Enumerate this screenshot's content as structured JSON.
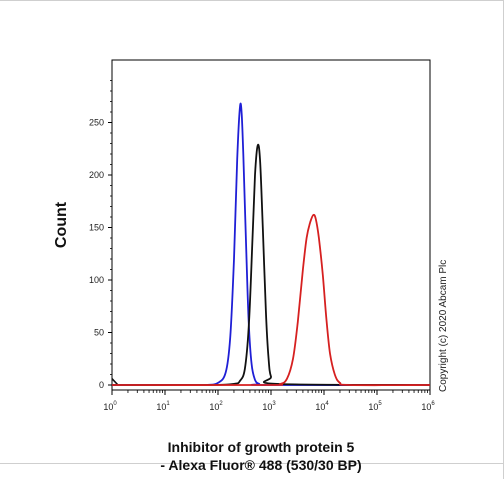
{
  "chart_data": {
    "type": "line",
    "xlabel_line1": "Inhibitor of growth protein 5",
    "xlabel_line2": "- Alexa Fluor® 488 (530/30 BP)",
    "ylabel": "Count",
    "x_scale": "log",
    "xlim": [
      1,
      1000000
    ],
    "ylim": [
      0,
      300
    ],
    "y_ticks": [
      0,
      50,
      100,
      150,
      200,
      250
    ],
    "x_ticks": [
      {
        "base": "10",
        "exp": "0",
        "value": 1
      },
      {
        "base": "10",
        "exp": "1",
        "value": 10
      },
      {
        "base": "10",
        "exp": "2",
        "value": 100
      },
      {
        "base": "10",
        "exp": "3",
        "value": 1000
      },
      {
        "base": "10",
        "exp": "4",
        "value": 10000
      },
      {
        "base": "10",
        "exp": "5",
        "value": 100000
      },
      {
        "base": "10",
        "exp": "6",
        "value": 1000000
      }
    ],
    "grid": false,
    "legend": "none",
    "series": [
      {
        "color": "#1f1fd6",
        "x": [
          1,
          20,
          60,
          100,
          140,
          170,
          200,
          230,
          260,
          280,
          300,
          340,
          380,
          430,
          500,
          600,
          800,
          1000000
        ],
        "y": [
          0,
          0,
          0,
          2,
          12,
          45,
          120,
          215,
          265,
          258,
          220,
          130,
          60,
          20,
          5,
          1,
          0,
          0
        ]
      },
      {
        "color": "#111111",
        "x": [
          1,
          60,
          200,
          260,
          320,
          380,
          440,
          500,
          560,
          620,
          700,
          800,
          900,
          1000,
          1300,
          1000000
        ],
        "y": [
          0,
          0,
          1,
          4,
          15,
          55,
          130,
          200,
          228,
          215,
          150,
          70,
          25,
          8,
          1,
          0
        ],
        "start_spike": 6
      },
      {
        "color": "#d62020",
        "x": [
          1,
          800,
          1500,
          2000,
          2600,
          3200,
          4000,
          4700,
          5500,
          6300,
          7000,
          8000,
          9500,
          11000,
          13000,
          16000,
          20000,
          30000,
          1000000
        ],
        "y": [
          0,
          0,
          1,
          6,
          25,
          60,
          110,
          140,
          155,
          162,
          158,
          140,
          105,
          65,
          30,
          10,
          2,
          0,
          0
        ]
      }
    ]
  },
  "copyright": "Copyright (c) 2020 Abcam Plc"
}
